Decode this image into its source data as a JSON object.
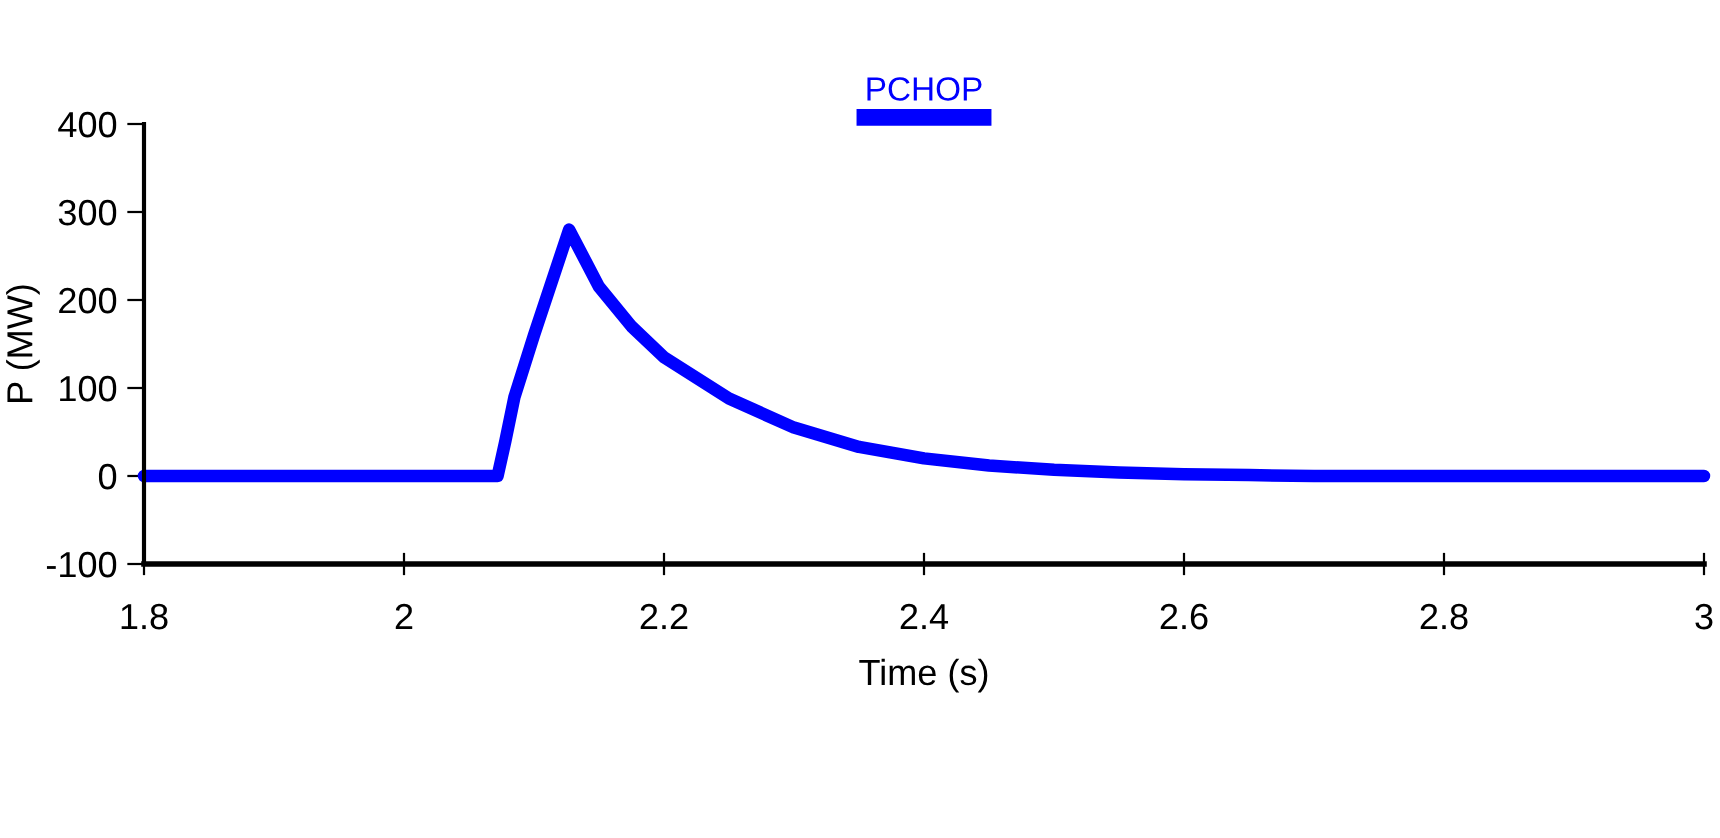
{
  "chart_data": {
    "type": "line",
    "xlabel": "Time (s)",
    "ylabel": "P (MW)",
    "series": [
      {
        "name": "PCHOP",
        "color": "#0000ff",
        "x": [
          1.8,
          2.072,
          2.078,
          2.085,
          2.1,
          2.127,
          2.15,
          2.175,
          2.2,
          2.25,
          2.3,
          2.35,
          2.4,
          2.45,
          2.5,
          2.55,
          2.6,
          2.65,
          2.7,
          3.0
        ],
        "values": [
          0,
          0,
          40,
          90,
          160,
          280,
          215,
          170,
          135,
          88,
          55,
          33,
          20,
          12,
          7,
          4,
          2,
          1,
          0,
          0
        ]
      }
    ],
    "xlim": [
      1.8,
      3
    ],
    "xticks": [
      1.8,
      2,
      2.2,
      2.4,
      2.6,
      2.8,
      3
    ],
    "ylim": [
      -100,
      400
    ],
    "yticks": [
      -100,
      0,
      100,
      200,
      300,
      400
    ],
    "legend": "top",
    "marker": "none",
    "line_style": "solid",
    "grid": false
  }
}
